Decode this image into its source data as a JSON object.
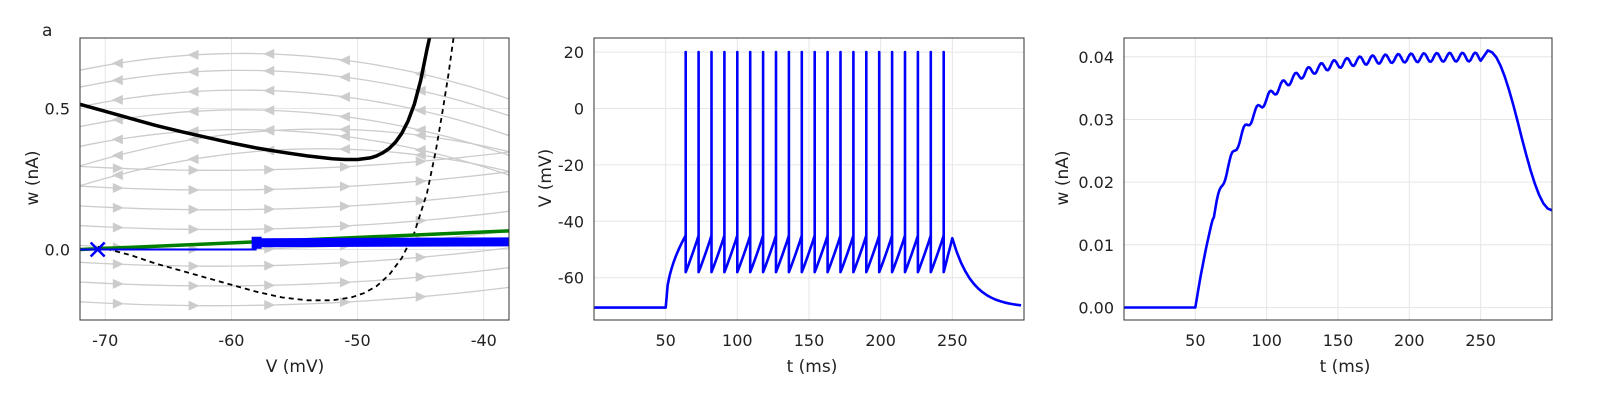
{
  "figure": {
    "panel_label": "a"
  },
  "chart_data": [
    {
      "id": "phase",
      "type": "line",
      "xlabel": "V (mV)",
      "ylabel": "w (nA)",
      "xlim": [
        -72,
        -38
      ],
      "ylim": [
        -0.25,
        0.75
      ],
      "xticks": [
        -70,
        -60,
        -50,
        -40
      ],
      "yticks": [
        0.0,
        0.5
      ],
      "xtick_labels": [
        "-70",
        "-60",
        "-50",
        "-40"
      ],
      "ytick_labels": [
        "0.0",
        "0.5"
      ],
      "grid": true,
      "streamlines": true,
      "colors": {
        "v_nullcline": "#000000",
        "w_nullcline": "#000000",
        "w_nullcline_low": "#008000",
        "trajectory": "#0000ff",
        "stream": "#cccccc"
      },
      "series": [
        {
          "id": "v-nullcline",
          "style": "solid",
          "x": [
            -72,
            -70,
            -68,
            -66,
            -64,
            -62,
            -60,
            -58,
            -56,
            -54,
            -52,
            -51,
            -50,
            -49,
            -48.5,
            -48,
            -47.5,
            -47,
            -46.5,
            -46,
            -45.5,
            -45,
            -44.5,
            -44.3
          ],
          "y": [
            0.515,
            0.49,
            0.465,
            0.44,
            0.418,
            0.398,
            0.378,
            0.36,
            0.345,
            0.332,
            0.322,
            0.319,
            0.319,
            0.325,
            0.332,
            0.343,
            0.358,
            0.38,
            0.412,
            0.456,
            0.516,
            0.6,
            0.71,
            0.75
          ]
        },
        {
          "id": "w-nullcline-dashed",
          "style": "dashed",
          "x": [
            -70.6,
            -68,
            -66,
            -64,
            -62,
            -60,
            -58,
            -56,
            -54,
            -52,
            -50.5,
            -49.5,
            -48.5,
            -47.5,
            -46.5,
            -45.5,
            -44.5,
            -43.8,
            -43.3,
            -42.8,
            -42.4
          ],
          "y": [
            0.01,
            -0.02,
            -0.05,
            -0.075,
            -0.1,
            -0.125,
            -0.15,
            -0.17,
            -0.18,
            -0.18,
            -0.17,
            -0.155,
            -0.13,
            -0.09,
            -0.03,
            0.06,
            0.2,
            0.35,
            0.48,
            0.62,
            0.75
          ]
        },
        {
          "id": "w-nullcline-green",
          "style": "solid",
          "x": [
            -72,
            -38
          ],
          "y": [
            0.0,
            0.066
          ]
        },
        {
          "id": "trajectory-band",
          "style": "solid",
          "x": [
            -58,
            -38
          ],
          "y": [
            0.024,
            0.027
          ]
        },
        {
          "id": "trajectory-line",
          "style": "solid",
          "x": [
            -72,
            -58
          ],
          "y": [
            0.0,
            0.0
          ]
        }
      ],
      "markers": [
        {
          "id": "start-cross",
          "shape": "x",
          "x": -70.6,
          "y": 0.0
        },
        {
          "id": "reset-square",
          "shape": "square",
          "x": -58,
          "y": 0.024
        }
      ]
    },
    {
      "id": "voltage",
      "type": "line",
      "xlabel": "t (ms)",
      "ylabel": "V (mV)",
      "xlim": [
        0,
        300
      ],
      "ylim": [
        -75,
        25
      ],
      "xticks": [
        50,
        100,
        150,
        200,
        250
      ],
      "yticks": [
        -60,
        -40,
        -20,
        0,
        20
      ],
      "xtick_labels": [
        "50",
        "100",
        "150",
        "200",
        "250"
      ],
      "ytick_labels": [
        "-60",
        "-40",
        "-20",
        "0",
        "20"
      ],
      "grid": true,
      "color": "#0000ff",
      "baseline_mV": -70.6,
      "stim_on_ms": 50,
      "stim_off_ms": 250,
      "first_spike_ms": 64,
      "spike_interval_ms": 9,
      "spike_count": 21,
      "spike_peak_mV": 20,
      "reset_mV": -58,
      "threshold_mV": -45
    },
    {
      "id": "adaptation",
      "type": "line",
      "xlabel": "t (ms)",
      "ylabel": "w (nA)",
      "xlim": [
        0,
        300
      ],
      "ylim": [
        -0.002,
        0.043
      ],
      "xticks": [
        50,
        100,
        150,
        200,
        250
      ],
      "yticks": [
        0.0,
        0.01,
        0.02,
        0.03,
        0.04
      ],
      "xtick_labels": [
        "50",
        "100",
        "150",
        "200",
        "250"
      ],
      "ytick_labels": [
        "0.00",
        "0.01",
        "0.02",
        "0.03",
        "0.04"
      ],
      "grid": true,
      "color": "#0000ff",
      "plateau_nA": 0.04,
      "peak_nA": 0.041,
      "end_nA": 0.0155
    }
  ]
}
